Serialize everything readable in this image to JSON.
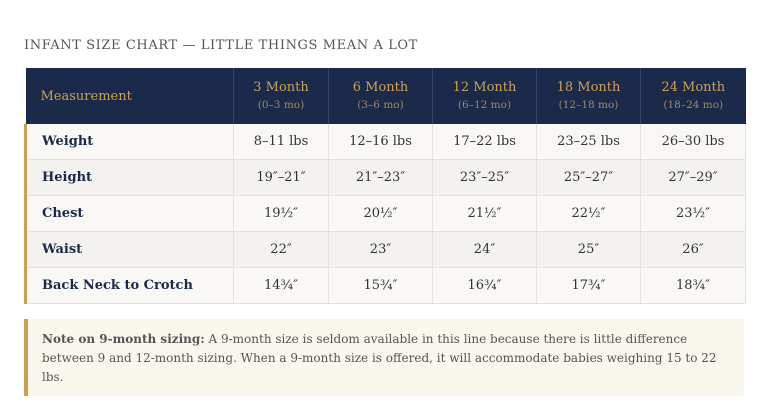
{
  "title": "INFANT SIZE CHART — LITTLE THINGS MEAN A LOT",
  "header": {
    "measurement_label": "Measurement",
    "columns": [
      {
        "age": "3 Month",
        "range": "(0–3 mo)"
      },
      {
        "age": "6 Month",
        "range": "(3–6 mo)"
      },
      {
        "age": "12 Month",
        "range": "(6–12 mo)"
      },
      {
        "age": "18 Month",
        "range": "(12–18 mo)"
      },
      {
        "age": "24 Month",
        "range": "(18–24 mo)"
      }
    ]
  },
  "rows": [
    {
      "label": "Weight",
      "values": [
        "8–11 lbs",
        "12–16 lbs",
        "17–22 lbs",
        "23–25 lbs",
        "26–30 lbs"
      ]
    },
    {
      "label": "Height",
      "values": [
        "19″–21″",
        "21″–23″",
        "23″–25″",
        "25″–27″",
        "27″–29″"
      ]
    },
    {
      "label": "Chest",
      "values": [
        "19½″",
        "20½″",
        "21½″",
        "22½″",
        "23½″"
      ]
    },
    {
      "label": "Waist",
      "values": [
        "22″",
        "23″",
        "24″",
        "25″",
        "26″"
      ]
    },
    {
      "label": "Back Neck to Crotch",
      "values": [
        "14¾″",
        "15¾″",
        "16¾″",
        "17¾″",
        "18¾″"
      ]
    }
  ],
  "note": {
    "heading": "Note on 9-month sizing:",
    "text": "A 9-month size is seldom available in this line because there is little difference between 9 and 12-month sizing. When a 9-month size is offered, it will accommodate babies weighing 15 to 22 lbs."
  }
}
